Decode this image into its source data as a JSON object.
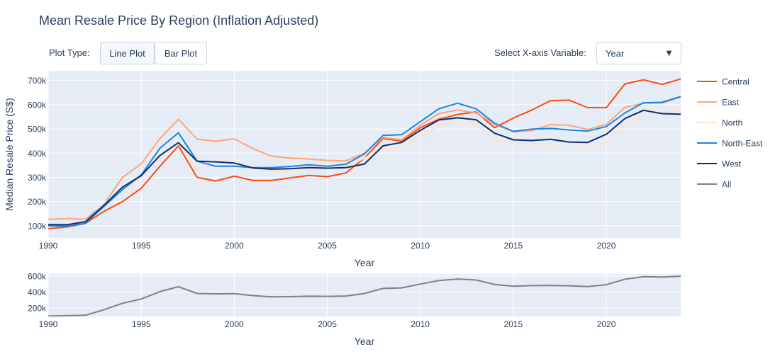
{
  "title": "Mean Resale Price By Region (Inflation Adjusted)",
  "controls": {
    "plot_type_label": "Plot Type:",
    "line_plot": "Line Plot",
    "bar_plot": "Bar Plot",
    "x_axis_label": "Select X-axis Variable:",
    "x_axis_value": "Year",
    "caret": "▼"
  },
  "colors": {
    "Central": "#FF4A0B",
    "East": "#FFA474",
    "North": "#FFE3C8",
    "North-East": "#1A84E8",
    "West": "#0B2E6E",
    "All": "#808080",
    "plot_bg": "#E5ECF6"
  },
  "chart_data": [
    {
      "type": "line",
      "xlabel": "Year",
      "ylabel": "Median Resale Price (S$)",
      "xlim": [
        1990,
        2024
      ],
      "ylim": [
        50000,
        740000
      ],
      "x_ticks": [
        1990,
        1995,
        2000,
        2005,
        2010,
        2015,
        2020
      ],
      "x_tick_labels": [
        "1990",
        "1995",
        "2000",
        "2005",
        "2010",
        "2015",
        "2020"
      ],
      "y_ticks": [
        100000,
        200000,
        300000,
        400000,
        500000,
        600000,
        700000
      ],
      "y_tick_labels": [
        "100k",
        "200k",
        "300k",
        "400k",
        "500k",
        "600k",
        "700k"
      ],
      "grid": true,
      "legend_position": "right",
      "x": [
        1990,
        1991,
        1992,
        1993,
        1994,
        1995,
        1996,
        1997,
        1998,
        1999,
        2000,
        2001,
        2002,
        2003,
        2004,
        2005,
        2006,
        2007,
        2008,
        2009,
        2010,
        2011,
        2012,
        2013,
        2014,
        2015,
        2016,
        2017,
        2018,
        2019,
        2020,
        2021,
        2022,
        2023,
        2024
      ],
      "series": [
        {
          "name": "Central",
          "values": [
            88000,
            95000,
            110000,
            160000,
            200000,
            255000,
            345000,
            430000,
            300000,
            285000,
            305000,
            287000,
            287000,
            298000,
            308000,
            303000,
            318000,
            380000,
            460000,
            450000,
            505000,
            540000,
            560000,
            570000,
            505000,
            545000,
            578000,
            617000,
            619000,
            588000,
            588000,
            686000,
            703000,
            684000,
            706000
          ]
        },
        {
          "name": "East",
          "values": [
            127000,
            130000,
            127000,
            190000,
            300000,
            356000,
            460000,
            540000,
            458000,
            449000,
            459000,
            419000,
            387000,
            380000,
            376000,
            370000,
            368000,
            400000,
            465000,
            455000,
            515000,
            563000,
            578000,
            566000,
            519000,
            488000,
            493000,
            518000,
            515000,
            498000,
            519000,
            589000,
            606000,
            607000,
            632000
          ]
        },
        {
          "name": "North",
          "values": [
            100000,
            101000,
            113000,
            195000,
            240000,
            301000,
            380000,
            447000,
            330000,
            350000,
            350000,
            340000,
            325000,
            330000,
            335000,
            336000,
            342000,
            380000,
            414000,
            423000,
            471000,
            513000,
            534000,
            518000,
            456000,
            441000,
            440000,
            430000,
            413000,
            420000,
            445000,
            512000,
            552000,
            565000,
            585000
          ]
        },
        {
          "name": "North-East",
          "values": [
            100000,
            98000,
            110000,
            180000,
            250000,
            310000,
            420000,
            484000,
            367000,
            346000,
            346000,
            340000,
            340000,
            345000,
            352000,
            346000,
            354000,
            397000,
            473000,
            476000,
            530000,
            583000,
            606000,
            583000,
            523000,
            490000,
            499000,
            502000,
            496000,
            491000,
            510000,
            566000,
            608000,
            610000,
            634000
          ]
        },
        {
          "name": "West",
          "values": [
            105000,
            104000,
            117000,
            185000,
            260000,
            307000,
            390000,
            443000,
            367000,
            364000,
            359000,
            339000,
            334000,
            336000,
            340000,
            338000,
            340000,
            355000,
            430000,
            444000,
            494000,
            537000,
            546000,
            538000,
            482000,
            455000,
            452000,
            457000,
            446000,
            444000,
            478000,
            543000,
            577000,
            563000,
            561000
          ]
        }
      ]
    },
    {
      "type": "line",
      "xlabel": "Year",
      "ylabel": "",
      "xlim": [
        1990,
        2024
      ],
      "ylim": [
        95000,
        625000
      ],
      "x_ticks": [
        1990,
        1995,
        2000,
        2005,
        2010,
        2015,
        2020
      ],
      "x_tick_labels": [
        "1990",
        "1995",
        "2000",
        "2005",
        "2010",
        "2015",
        "2020"
      ],
      "y_ticks": [
        200000,
        400000,
        600000
      ],
      "y_tick_labels": [
        "200k",
        "400k",
        "600k"
      ],
      "grid": true,
      "legend_position": "right",
      "x": [
        1990,
        1991,
        1992,
        1993,
        1994,
        1995,
        1996,
        1997,
        1998,
        1999,
        2000,
        2001,
        2002,
        2003,
        2004,
        2005,
        2006,
        2007,
        2008,
        2009,
        2010,
        2011,
        2012,
        2013,
        2014,
        2015,
        2016,
        2017,
        2018,
        2019,
        2020,
        2021,
        2022,
        2023,
        2024
      ],
      "series": [
        {
          "name": "All",
          "values": [
            100000,
            105000,
            110000,
            180000,
            260000,
            313000,
            405000,
            466000,
            382000,
            378000,
            380000,
            356000,
            340000,
            342000,
            348000,
            346000,
            350000,
            382000,
            445000,
            452000,
            500000,
            543000,
            562000,
            550000,
            495000,
            472000,
            480000,
            482000,
            478000,
            468000,
            492000,
            560000,
            592000,
            588000,
            598000
          ]
        }
      ]
    }
  ]
}
